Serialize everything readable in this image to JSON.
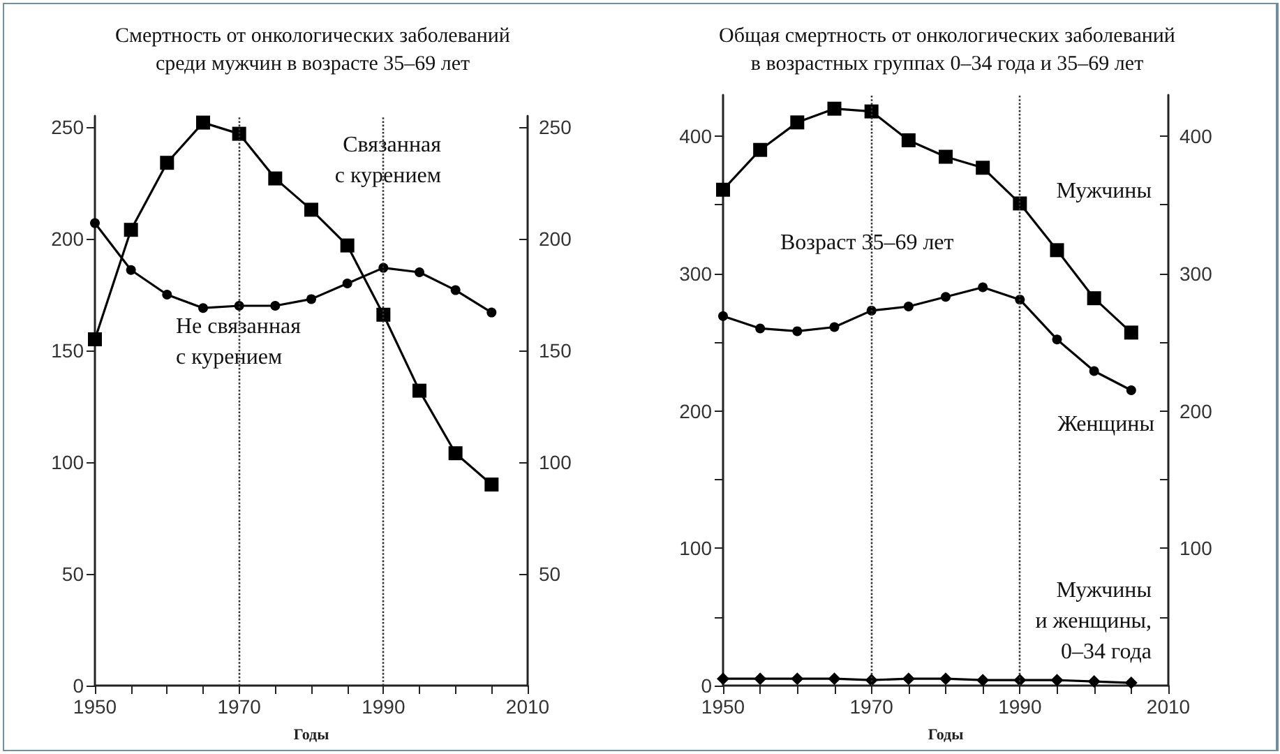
{
  "chart_data": [
    {
      "type": "line",
      "title": "Смертность от онкологических заболеваний\nсреди мужчин в возрасте 35–69 лет",
      "xlabel": "Годы",
      "x": [
        1950,
        1955,
        1960,
        1965,
        1970,
        1975,
        1980,
        1985,
        1990,
        1995,
        2000,
        2005
      ],
      "series": [
        {
          "name": "Связанная\nс курением",
          "color": "#000000",
          "marker": "square",
          "values": [
            155,
            204,
            234,
            252,
            247,
            227,
            213,
            197,
            166,
            132,
            104,
            90
          ]
        },
        {
          "name": "Не связанная\nс курением",
          "color": "#000000",
          "marker": "circle",
          "values": [
            207,
            186,
            175,
            169,
            170,
            170,
            173,
            180,
            187,
            185,
            177,
            167
          ]
        }
      ],
      "xlim": [
        1950,
        2010
      ],
      "xticks": [
        1950,
        {
          "value": 1955,
          "label": null
        },
        {
          "value": 1960,
          "label": null
        },
        {
          "value": 1965,
          "label": null
        },
        1970,
        {
          "value": 1975,
          "label": null
        },
        {
          "value": 1980,
          "label": null
        },
        {
          "value": 1985,
          "label": null
        },
        1990,
        {
          "value": 1995,
          "label": null
        },
        {
          "value": 2000,
          "label": null
        },
        {
          "value": 2005,
          "label": null
        },
        2010
      ],
      "ylim": [
        0,
        255
      ],
      "yticks": [
        0,
        50,
        100,
        150,
        200,
        250
      ],
      "y2lim": [
        0,
        255
      ],
      "y2ticks": [
        50,
        100,
        150,
        200,
        250
      ],
      "ref_lines": [
        {
          "axis": "x",
          "value": 1970,
          "line_style": "dotted"
        },
        {
          "axis": "x",
          "value": 1990,
          "line_style": "dotted"
        }
      ],
      "grid": false,
      "legend": false
    },
    {
      "type": "line",
      "title": "Общая смертность от онкологических заболеваний\nв возрастных группах 0–34 года и 35–69 лет",
      "xlabel": "Годы",
      "annotations": [
        "Возраст 35–69 лет"
      ],
      "x": [
        1950,
        1955,
        1960,
        1965,
        1970,
        1975,
        1980,
        1985,
        1990,
        1995,
        2000,
        2005
      ],
      "series": [
        {
          "name": "Мужчины",
          "color": "#000000",
          "marker": "square",
          "values": [
            361,
            390,
            410,
            420,
            418,
            397,
            385,
            377,
            351,
            317,
            282,
            257
          ]
        },
        {
          "name": "Женщины",
          "color": "#000000",
          "marker": "circle",
          "values": [
            269,
            260,
            258,
            261,
            273,
            276,
            283,
            290,
            281,
            252,
            229,
            215
          ]
        },
        {
          "name": "Мужчины\nи женщины,\n0–34 года",
          "color": "#000000",
          "marker": "diamond",
          "values": [
            5,
            5,
            5,
            5,
            4,
            5,
            5,
            4,
            4,
            4,
            3,
            2
          ]
        }
      ],
      "xlim": [
        1950,
        2010
      ],
      "xticks": [
        1950,
        {
          "value": 1955,
          "label": null
        },
        {
          "value": 1960,
          "label": null
        },
        {
          "value": 1965,
          "label": null
        },
        1970,
        {
          "value": 1975,
          "label": null
        },
        {
          "value": 1980,
          "label": null
        },
        {
          "value": 1985,
          "label": null
        },
        1990,
        {
          "value": 1995,
          "label": null
        },
        {
          "value": 2000,
          "label": null
        },
        {
          "value": 2005,
          "label": null
        },
        2010
      ],
      "ylim": [
        0,
        430
      ],
      "yticks": [
        0,
        {
          "value": 50,
          "label": null
        },
        100,
        {
          "value": 150,
          "label": null
        },
        200,
        {
          "value": 250,
          "label": null
        },
        300,
        {
          "value": 350,
          "label": null
        },
        400
      ],
      "y2lim": [
        0,
        430
      ],
      "y2ticks": [
        {
          "value": 50,
          "label": null
        },
        100,
        {
          "value": 150,
          "label": null
        },
        200,
        {
          "value": 250,
          "label": null
        },
        300,
        {
          "value": 350,
          "label": null
        },
        400
      ],
      "ref_lines": [
        {
          "axis": "x",
          "value": 1970,
          "line_style": "dotted"
        },
        {
          "axis": "x",
          "value": 1990,
          "line_style": "dotted"
        }
      ],
      "grid": false,
      "legend": false
    }
  ]
}
